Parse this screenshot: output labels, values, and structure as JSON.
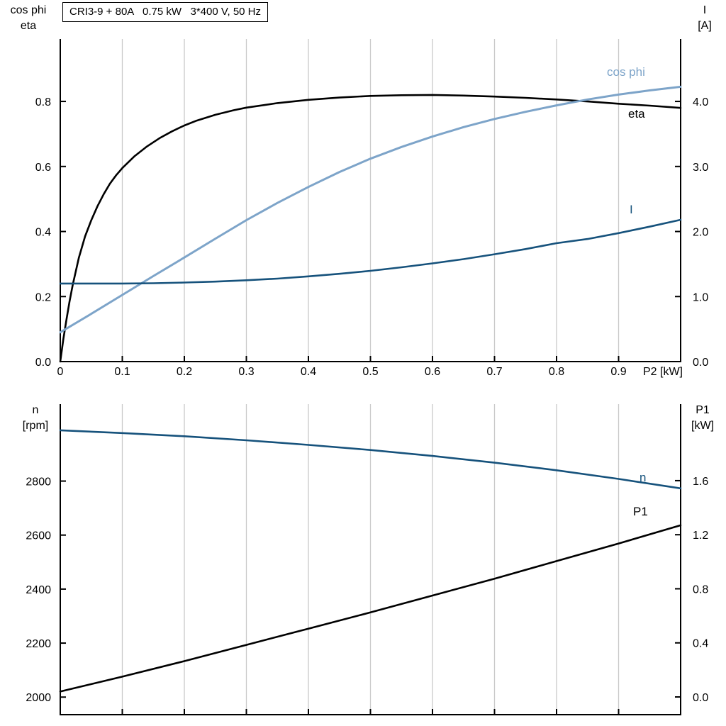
{
  "panel": {
    "title_box": "CRI3-9 + 80A   0.75 kW   3*400 V, 50 Hz"
  },
  "chart_data": {
    "type": "line",
    "grid_color": "#c9c9c9",
    "axis_color": "#000000",
    "charts": [
      {
        "name": "motor-electrical",
        "title": "CRI3-9 + 80A   0.75 kW   3*400 V, 50 Hz",
        "x_axis": {
          "label": "P2 [kW]",
          "min": 0,
          "max": 1.0,
          "ticks": [
            0,
            0.1,
            0.2,
            0.3,
            0.4,
            0.5,
            0.6,
            0.7,
            0.8,
            0.9
          ],
          "tick_labels": [
            "0",
            "0.1",
            "0.2",
            "0.3",
            "0.4",
            "0.5",
            "0.6",
            "0.7",
            "0.8",
            "0.9"
          ],
          "show_tick_labels": true
        },
        "left_axis": {
          "name_lines": [
            "cos phi",
            "eta"
          ],
          "min": 0,
          "max": 0.992,
          "ticks": [
            0,
            0.2,
            0.4,
            0.6,
            0.8
          ],
          "tick_labels": [
            "0.0",
            "0.2",
            "0.4",
            "0.6",
            "0.8"
          ]
        },
        "right_axis": {
          "name_lines": [
            "I",
            "[A]"
          ],
          "min": 0,
          "max": 4.96,
          "ticks": [
            0,
            1,
            2,
            3,
            4
          ],
          "tick_labels": [
            "0.0",
            "1.0",
            "2.0",
            "3.0",
            "4.0"
          ]
        },
        "series": [
          {
            "name": "eta",
            "label": "eta",
            "axis": "left",
            "color": "#000000",
            "width": 2.6,
            "points": [
              [
                0,
                0
              ],
              [
                0.005,
                0.07
              ],
              [
                0.01,
                0.13
              ],
              [
                0.015,
                0.185
              ],
              [
                0.02,
                0.235
              ],
              [
                0.03,
                0.32
              ],
              [
                0.04,
                0.385
              ],
              [
                0.05,
                0.435
              ],
              [
                0.06,
                0.478
              ],
              [
                0.07,
                0.515
              ],
              [
                0.08,
                0.547
              ],
              [
                0.09,
                0.573
              ],
              [
                0.1,
                0.595
              ],
              [
                0.12,
                0.632
              ],
              [
                0.14,
                0.662
              ],
              [
                0.16,
                0.687
              ],
              [
                0.18,
                0.708
              ],
              [
                0.2,
                0.726
              ],
              [
                0.22,
                0.741
              ],
              [
                0.25,
                0.759
              ],
              [
                0.28,
                0.773
              ],
              [
                0.3,
                0.781
              ],
              [
                0.35,
                0.795
              ],
              [
                0.4,
                0.805
              ],
              [
                0.45,
                0.812
              ],
              [
                0.5,
                0.817
              ],
              [
                0.55,
                0.819
              ],
              [
                0.6,
                0.82
              ],
              [
                0.65,
                0.818
              ],
              [
                0.7,
                0.815
              ],
              [
                0.75,
                0.811
              ],
              [
                0.8,
                0.806
              ],
              [
                0.85,
                0.8
              ],
              [
                0.9,
                0.793
              ],
              [
                0.95,
                0.787
              ],
              [
                1,
                0.78
              ]
            ]
          },
          {
            "name": "cos-phi",
            "label": "cos phi",
            "axis": "left",
            "color": "#7da4c9",
            "width": 3,
            "points": [
              [
                0,
                0.09
              ],
              [
                0.05,
                0.147
              ],
              [
                0.1,
                0.205
              ],
              [
                0.15,
                0.263
              ],
              [
                0.2,
                0.32
              ],
              [
                0.25,
                0.378
              ],
              [
                0.3,
                0.435
              ],
              [
                0.35,
                0.488
              ],
              [
                0.4,
                0.537
              ],
              [
                0.45,
                0.583
              ],
              [
                0.5,
                0.624
              ],
              [
                0.55,
                0.66
              ],
              [
                0.6,
                0.692
              ],
              [
                0.65,
                0.721
              ],
              [
                0.7,
                0.746
              ],
              [
                0.75,
                0.768
              ],
              [
                0.8,
                0.788
              ],
              [
                0.85,
                0.806
              ],
              [
                0.9,
                0.821
              ],
              [
                0.95,
                0.834
              ],
              [
                1,
                0.845
              ]
            ]
          },
          {
            "name": "current",
            "label": "I",
            "axis": "right",
            "color": "#16527c",
            "width": 2.6,
            "points": [
              [
                0,
                1.2
              ],
              [
                0.05,
                1.2
              ],
              [
                0.1,
                1.2
              ],
              [
                0.15,
                1.205
              ],
              [
                0.2,
                1.215
              ],
              [
                0.25,
                1.23
              ],
              [
                0.3,
                1.25
              ],
              [
                0.35,
                1.275
              ],
              [
                0.4,
                1.31
              ],
              [
                0.45,
                1.35
              ],
              [
                0.5,
                1.395
              ],
              [
                0.55,
                1.45
              ],
              [
                0.6,
                1.51
              ],
              [
                0.65,
                1.575
              ],
              [
                0.7,
                1.65
              ],
              [
                0.75,
                1.73
              ],
              [
                0.8,
                1.82
              ],
              [
                0.85,
                1.885
              ],
              [
                0.9,
                1.975
              ],
              [
                0.95,
                2.075
              ],
              [
                1,
                2.18
              ]
            ]
          }
        ]
      },
      {
        "name": "motor-mechanical",
        "title": "",
        "x_axis": {
          "label": "",
          "min": 0,
          "max": 1.0,
          "ticks": [
            0,
            0.1,
            0.2,
            0.3,
            0.4,
            0.5,
            0.6,
            0.7,
            0.8,
            0.9
          ],
          "tick_labels": [],
          "show_tick_labels": false
        },
        "left_axis": {
          "name_lines": [
            "n",
            "[rpm]"
          ],
          "min": 1935,
          "max": 3085,
          "ticks": [
            2000,
            2200,
            2400,
            2600,
            2800
          ],
          "tick_labels": [
            "2000",
            "2200",
            "2400",
            "2600",
            "2800"
          ]
        },
        "right_axis": {
          "name_lines": [
            "P1",
            "[kW]"
          ],
          "min": -0.131,
          "max": 2.166,
          "ticks": [
            0,
            0.4,
            0.8,
            1.2,
            1.6
          ],
          "tick_labels": [
            "0.0",
            "0.4",
            "0.8",
            "1.2",
            "1.6"
          ]
        },
        "series": [
          {
            "name": "speed",
            "label": "n",
            "axis": "left",
            "color": "#16527c",
            "width": 2.6,
            "points": [
              [
                0,
                2988
              ],
              [
                0.1,
                2978
              ],
              [
                0.2,
                2966
              ],
              [
                0.3,
                2951
              ],
              [
                0.4,
                2934
              ],
              [
                0.5,
                2915
              ],
              [
                0.6,
                2893
              ],
              [
                0.7,
                2868
              ],
              [
                0.8,
                2840
              ],
              [
                0.9,
                2808
              ],
              [
                1,
                2773
              ]
            ]
          },
          {
            "name": "p1",
            "label": "P1",
            "axis": "right",
            "color": "#000000",
            "width": 2.6,
            "points": [
              [
                0,
                0.04
              ],
              [
                0.1,
                0.15
              ],
              [
                0.2,
                0.265
              ],
              [
                0.3,
                0.385
              ],
              [
                0.4,
                0.505
              ],
              [
                0.5,
                0.625
              ],
              [
                0.6,
                0.75
              ],
              [
                0.7,
                0.875
              ],
              [
                0.8,
                1.005
              ],
              [
                0.9,
                1.135
              ],
              [
                1,
                1.27
              ]
            ]
          }
        ]
      }
    ]
  }
}
